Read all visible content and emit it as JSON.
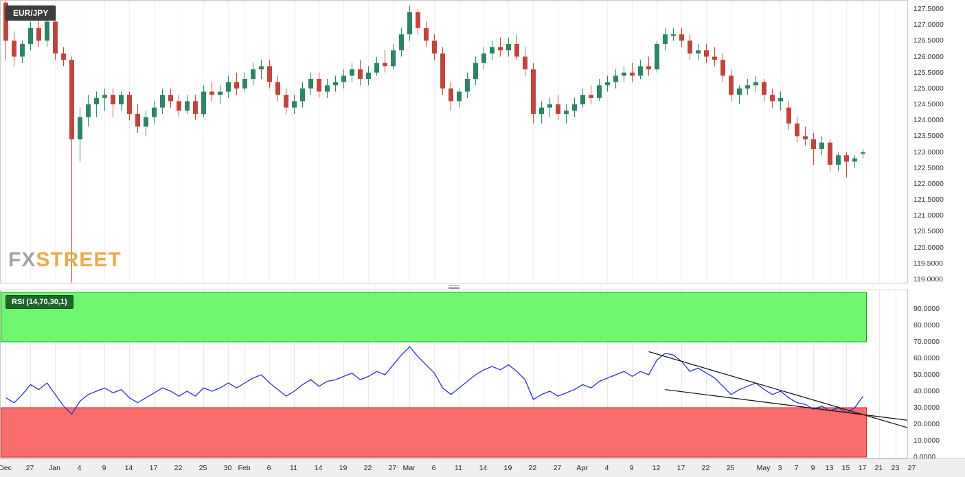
{
  "header": {
    "symbol_badge": "EUR/JPY"
  },
  "watermark": {
    "fx": "FX",
    "street": "STREET"
  },
  "rsi_indicator": {
    "badge": "RSI (14,70,30,1)"
  },
  "colors": {
    "bull": "#2f8464",
    "bear": "#c0453c",
    "rsi_line": "#2433cc",
    "trendline": "#1a1a1a",
    "overbought_fill": "#6ef66e",
    "overbought_border": "#1fa01f",
    "oversold_fill": "#f96d6d",
    "oversold_border": "#cc2222",
    "grid": "#ececec",
    "panel_border": "#c8c8c8"
  },
  "chart_data": [
    {
      "type": "candlestick",
      "symbol": "EUR/JPY",
      "ylim": [
        119.0,
        127.5
      ],
      "y_step": 0.5,
      "y_tick_labels": [
        "127.5000",
        "127.0000",
        "126.5000",
        "126.0000",
        "125.5000",
        "125.0000",
        "124.5000",
        "124.0000",
        "123.5000",
        "123.0000",
        "122.5000",
        "122.0000",
        "121.5000",
        "121.0000",
        "120.5000",
        "120.0000",
        "119.5000",
        "119.0000"
      ],
      "x_ticks": [
        {
          "label": "Dec",
          "index": 0
        },
        {
          "label": "27",
          "index": 3
        },
        {
          "label": "Jan",
          "index": 6
        },
        {
          "label": "4",
          "index": 9
        },
        {
          "label": "9",
          "index": 12
        },
        {
          "label": "14",
          "index": 15
        },
        {
          "label": "17",
          "index": 18
        },
        {
          "label": "22",
          "index": 21
        },
        {
          "label": "25",
          "index": 24
        },
        {
          "label": "30",
          "index": 27
        },
        {
          "label": "Feb",
          "index": 29
        },
        {
          "label": "6",
          "index": 32
        },
        {
          "label": "11",
          "index": 35
        },
        {
          "label": "14",
          "index": 38
        },
        {
          "label": "19",
          "index": 41
        },
        {
          "label": "22",
          "index": 44
        },
        {
          "label": "27",
          "index": 47
        },
        {
          "label": "Mar",
          "index": 49
        },
        {
          "label": "6",
          "index": 52
        },
        {
          "label": "11",
          "index": 55
        },
        {
          "label": "14",
          "index": 58
        },
        {
          "label": "19",
          "index": 61
        },
        {
          "label": "22",
          "index": 64
        },
        {
          "label": "27",
          "index": 67
        },
        {
          "label": "Apr",
          "index": 70
        },
        {
          "label": "4",
          "index": 73
        },
        {
          "label": "9",
          "index": 76
        },
        {
          "label": "12",
          "index": 79
        },
        {
          "label": "17",
          "index": 82
        },
        {
          "label": "22",
          "index": 85
        },
        {
          "label": "25",
          "index": 88
        },
        {
          "label": "May",
          "index": 92
        },
        {
          "label": "3",
          "index": 94
        },
        {
          "label": "7",
          "index": 96
        },
        {
          "label": "9",
          "index": 98
        },
        {
          "label": "13",
          "index": 100
        },
        {
          "label": "15",
          "index": 102
        },
        {
          "label": "17",
          "index": 104
        },
        {
          "label": "21",
          "index": 106
        },
        {
          "label": "23",
          "index": 108
        },
        {
          "label": "27",
          "index": 110
        }
      ],
      "ohlc": [
        [
          127.7,
          127.8,
          125.9,
          126.5
        ],
        [
          126.5,
          126.8,
          125.7,
          126.0
        ],
        [
          126.0,
          126.5,
          125.8,
          126.4
        ],
        [
          126.4,
          127.1,
          126.2,
          126.9
        ],
        [
          126.9,
          127.2,
          126.3,
          126.5
        ],
        [
          126.5,
          127.3,
          126.3,
          127.1
        ],
        [
          127.1,
          127.2,
          125.9,
          126.1
        ],
        [
          126.1,
          126.3,
          125.7,
          125.9
        ],
        [
          125.9,
          126.0,
          118.9,
          123.4
        ],
        [
          123.4,
          124.4,
          122.7,
          124.1
        ],
        [
          124.1,
          124.8,
          123.8,
          124.5
        ],
        [
          124.5,
          124.9,
          124.1,
          124.7
        ],
        [
          124.7,
          125.0,
          124.3,
          124.8
        ],
        [
          124.8,
          125.0,
          124.1,
          124.5
        ],
        [
          124.5,
          124.9,
          124.3,
          124.8
        ],
        [
          124.8,
          124.9,
          124.0,
          124.2
        ],
        [
          124.2,
          124.5,
          123.6,
          123.8
        ],
        [
          123.8,
          124.3,
          123.5,
          124.1
        ],
        [
          124.1,
          124.6,
          123.9,
          124.4
        ],
        [
          124.4,
          125.0,
          124.2,
          124.8
        ],
        [
          124.8,
          125.0,
          124.4,
          124.6
        ],
        [
          124.6,
          124.8,
          124.1,
          124.3
        ],
        [
          124.3,
          124.8,
          124.2,
          124.6
        ],
        [
          124.6,
          124.8,
          124.0,
          124.2
        ],
        [
          124.2,
          125.1,
          124.1,
          124.9
        ],
        [
          124.9,
          125.2,
          124.6,
          124.8
        ],
        [
          124.8,
          125.1,
          124.5,
          124.9
        ],
        [
          124.9,
          125.4,
          124.7,
          125.2
        ],
        [
          125.2,
          125.5,
          124.8,
          125.0
        ],
        [
          125.0,
          125.5,
          124.9,
          125.3
        ],
        [
          125.3,
          125.8,
          125.1,
          125.6
        ],
        [
          125.6,
          125.9,
          125.3,
          125.7
        ],
        [
          125.7,
          125.9,
          125.0,
          125.2
        ],
        [
          125.2,
          125.4,
          124.6,
          124.8
        ],
        [
          124.8,
          125.0,
          124.2,
          124.4
        ],
        [
          124.4,
          124.8,
          124.2,
          124.6
        ],
        [
          124.6,
          125.2,
          124.4,
          125.0
        ],
        [
          125.0,
          125.5,
          124.8,
          125.3
        ],
        [
          125.3,
          125.5,
          124.7,
          124.9
        ],
        [
          124.9,
          125.3,
          124.7,
          125.1
        ],
        [
          125.1,
          125.4,
          124.9,
          125.2
        ],
        [
          125.2,
          125.6,
          125.0,
          125.4
        ],
        [
          125.4,
          125.8,
          125.2,
          125.6
        ],
        [
          125.6,
          125.9,
          125.1,
          125.3
        ],
        [
          125.3,
          125.7,
          125.1,
          125.5
        ],
        [
          125.5,
          126.0,
          125.4,
          125.8
        ],
        [
          125.8,
          126.2,
          125.5,
          125.7
        ],
        [
          125.7,
          126.4,
          125.6,
          126.2
        ],
        [
          126.2,
          126.9,
          126.0,
          126.7
        ],
        [
          126.7,
          127.6,
          126.5,
          127.4
        ],
        [
          127.4,
          127.5,
          126.7,
          126.9
        ],
        [
          126.9,
          127.1,
          126.3,
          126.5
        ],
        [
          126.5,
          126.7,
          125.9,
          126.1
        ],
        [
          126.1,
          126.3,
          124.8,
          125.0
        ],
        [
          125.0,
          125.2,
          124.3,
          124.6
        ],
        [
          124.6,
          125.0,
          124.4,
          124.9
        ],
        [
          124.9,
          125.5,
          124.7,
          125.3
        ],
        [
          125.3,
          126.0,
          125.1,
          125.8
        ],
        [
          125.8,
          126.3,
          125.6,
          126.1
        ],
        [
          126.1,
          126.5,
          125.9,
          126.3
        ],
        [
          126.3,
          126.6,
          126.0,
          126.2
        ],
        [
          126.2,
          126.6,
          126.0,
          126.4
        ],
        [
          126.4,
          126.7,
          125.9,
          126.0
        ],
        [
          126.0,
          126.3,
          125.4,
          125.6
        ],
        [
          125.6,
          125.8,
          123.9,
          124.2
        ],
        [
          124.2,
          124.6,
          123.9,
          124.4
        ],
        [
          124.4,
          124.7,
          124.1,
          124.5
        ],
        [
          124.5,
          124.8,
          124.0,
          124.2
        ],
        [
          124.2,
          124.5,
          123.9,
          124.3
        ],
        [
          124.3,
          124.7,
          124.1,
          124.5
        ],
        [
          124.5,
          125.0,
          124.4,
          124.8
        ],
        [
          124.8,
          125.1,
          124.5,
          124.7
        ],
        [
          124.7,
          125.3,
          124.6,
          125.1
        ],
        [
          125.1,
          125.4,
          124.9,
          125.2
        ],
        [
          125.2,
          125.6,
          125.0,
          125.4
        ],
        [
          125.4,
          125.7,
          125.2,
          125.5
        ],
        [
          125.5,
          125.8,
          125.2,
          125.4
        ],
        [
          125.4,
          125.9,
          125.3,
          125.7
        ],
        [
          125.7,
          126.0,
          125.4,
          125.6
        ],
        [
          125.6,
          126.5,
          125.5,
          126.4
        ],
        [
          126.4,
          126.9,
          126.2,
          126.7
        ],
        [
          126.65,
          126.9,
          126.5,
          126.7
        ],
        [
          126.7,
          126.9,
          126.3,
          126.5
        ],
        [
          126.5,
          126.7,
          125.9,
          126.1
        ],
        [
          126.1,
          126.4,
          125.9,
          126.2
        ],
        [
          126.2,
          126.4,
          125.8,
          126.0
        ],
        [
          126.0,
          126.3,
          125.7,
          125.9
        ],
        [
          125.9,
          126.1,
          125.2,
          125.4
        ],
        [
          125.4,
          125.6,
          124.6,
          124.8
        ],
        [
          124.8,
          125.1,
          124.5,
          125.0
        ],
        [
          125.0,
          125.3,
          124.8,
          125.1
        ],
        [
          125.1,
          125.4,
          124.9,
          125.2
        ],
        [
          125.2,
          125.3,
          124.6,
          124.8
        ],
        [
          124.8,
          125.0,
          124.4,
          124.6
        ],
        [
          124.6,
          124.9,
          124.3,
          124.7
        ],
        [
          124.4,
          124.6,
          123.7,
          123.9
        ],
        [
          123.9,
          124.1,
          123.3,
          123.5
        ],
        [
          123.5,
          123.8,
          123.2,
          123.4
        ],
        [
          123.4,
          123.6,
          122.6,
          123.1
        ],
        [
          123.1,
          123.5,
          122.9,
          123.3
        ],
        [
          123.3,
          123.4,
          122.4,
          122.6
        ],
        [
          122.6,
          123.0,
          122.4,
          122.9
        ],
        [
          122.9,
          123.0,
          122.2,
          122.7
        ],
        [
          122.7,
          122.9,
          122.5,
          122.8
        ],
        [
          122.95,
          123.1,
          122.8,
          123.0
        ]
      ]
    },
    {
      "type": "line",
      "name": "RSI (14,70,30,1)",
      "ylim": [
        0,
        100
      ],
      "y_step": 10,
      "y_tick_top": 90,
      "y_tick_labels": [
        "90.0000",
        "80.0000",
        "70.0000",
        "60.0000",
        "50.0000",
        "40.0000",
        "30.0000",
        "20.0000",
        "10.0000",
        "0.0000"
      ],
      "zones": {
        "overbought": [
          70,
          100
        ],
        "oversold": [
          0,
          30
        ]
      },
      "values": [
        36,
        33,
        38,
        44,
        41,
        45,
        38,
        31,
        26,
        34,
        38,
        40,
        42,
        39,
        41,
        36,
        33,
        36,
        39,
        42,
        40,
        37,
        40,
        37,
        42,
        40,
        42,
        45,
        42,
        45,
        48,
        50,
        45,
        41,
        37,
        40,
        44,
        47,
        43,
        46,
        47,
        49,
        51,
        47,
        49,
        52,
        50,
        56,
        62,
        67,
        61,
        56,
        51,
        42,
        38,
        42,
        46,
        50,
        53,
        55,
        53,
        56,
        52,
        47,
        35,
        38,
        40,
        37,
        39,
        41,
        44,
        42,
        46,
        48,
        50,
        52,
        49,
        52,
        50,
        59,
        63,
        62,
        58,
        52,
        54,
        51,
        48,
        43,
        38,
        41,
        43,
        45,
        41,
        38,
        40,
        36,
        33,
        32,
        29,
        31,
        28,
        30,
        27,
        30,
        37
      ],
      "trendlines": [
        {
          "from": {
            "index": 78,
            "value": 64
          },
          "to": {
            "index": 110,
            "value": 17
          }
        },
        {
          "from": {
            "index": 80,
            "value": 41
          },
          "to": {
            "index": 110,
            "value": 22
          }
        }
      ]
    }
  ]
}
